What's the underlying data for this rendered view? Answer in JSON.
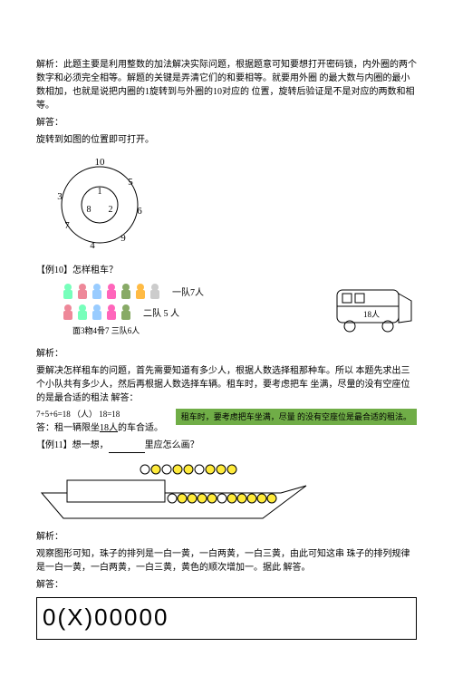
{
  "analysis1": "解析：此题主要是利用整数的加法解决实际问题，根据题意可知要想打开密码锁，内外圈的两个数字和必须完全相等。解题的关键是弄清它们的和要相等。就要用外圈 的最大数与内圈的最小数相加，也就是说把内圈的1旋转到与外圈的10对应的 位置，旋转后验证是不是对应的两数和相等。",
  "answer_label": "解答：",
  "rotate_text": "旋转到如图的位置即可打开。",
  "dial": {
    "outer": [
      "10",
      "5",
      "6",
      "9",
      "4",
      "7",
      "3"
    ],
    "inner": [
      "1",
      "2",
      "8"
    ]
  },
  "ex10_title": "【例10】怎样租车？",
  "team1": "一队7人",
  "team2": "二队 5 人",
  "team3": "面3粅4骨7 三队6人",
  "bus_label": "18人",
  "analysis2_label": "解析：",
  "analysis2": "要解决怎样租车的问题，首先需要知道有多少人，根据人数选择租那种车。所以 本题先求出三个小队共有多少人，然后再根据人数选择车辆。租车时，要考虑把车 坐满，尽量的没有空座位的是最合适的租法 解答：",
  "calc": "7+5+6=18 （人）    18=18",
  "conclusion_prefix": "答：租一辆限坐",
  "conclusion_num": "18人",
  "conclusion_suffix": "的车合适。",
  "tag1": "",
  "tag2": "租车时，要考虑把车坐满，尽量 的没有空座位是最合适的租法。",
  "ex11_title": "【例11】想一想，",
  "ex11_tail": "里应怎么画？",
  "analysis3_label": "解析：",
  "analysis3": "观察图形可知，珠子的排列是一白一黄，一白两黄，一白三黄，由此可知这串 珠子的排列规律是一白一黄，一白两黄，一白三黄，黄色的顺次增加一。据此 解答。",
  "answer_label2": "解答：",
  "final_answer": "0(X)00000",
  "kid_colors": {
    "row1": [
      "#7fb",
      "#e89",
      "#9cf",
      "#f6b",
      "#8a6",
      "#fb4",
      "#ccc"
    ],
    "row2": [
      "#e89",
      "#7fb",
      "#9cf",
      "#f6b",
      "#8a6"
    ]
  }
}
